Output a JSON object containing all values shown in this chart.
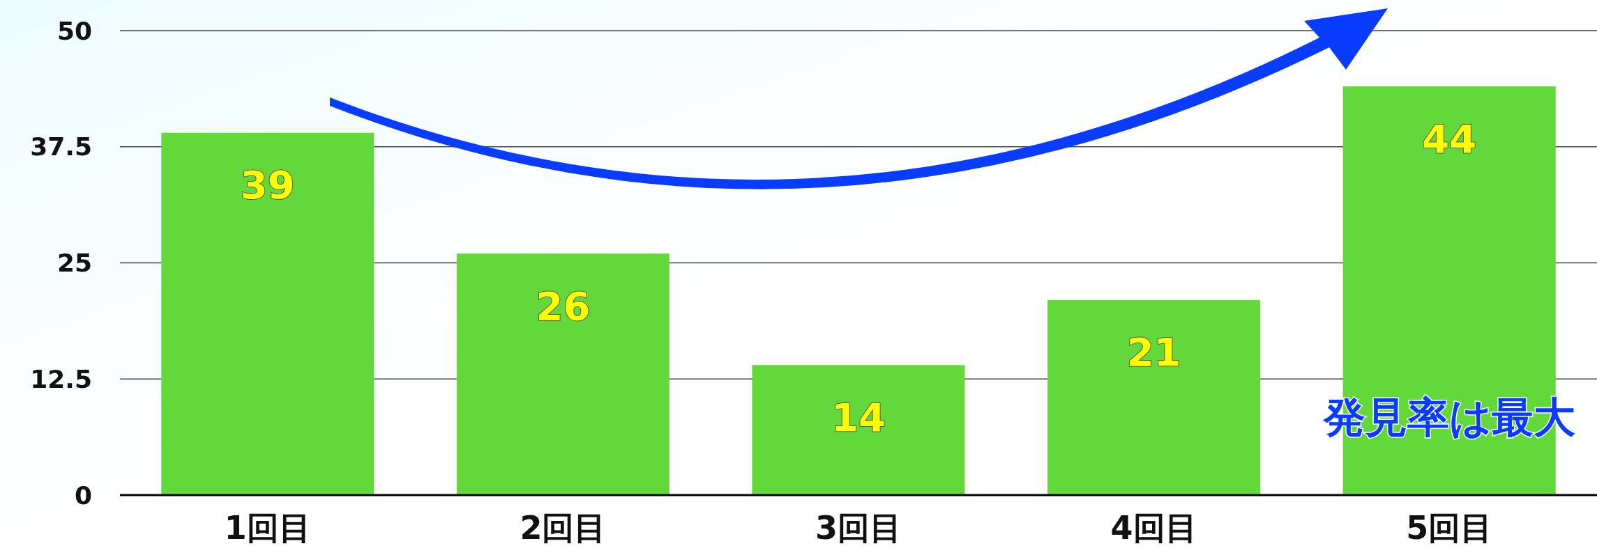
{
  "chart_data": {
    "type": "bar",
    "categories": [
      "1回目",
      "2回目",
      "3回目",
      "4回目",
      "5回目"
    ],
    "values": [
      39,
      26,
      14,
      21,
      44
    ],
    "color": "#62d83a",
    "ylim": [
      0,
      50
    ],
    "yticks": [
      0,
      12.5,
      25,
      37.5,
      50
    ],
    "grid": "y",
    "data_labels": true,
    "annotations": [
      "発見率は最大"
    ]
  }
}
